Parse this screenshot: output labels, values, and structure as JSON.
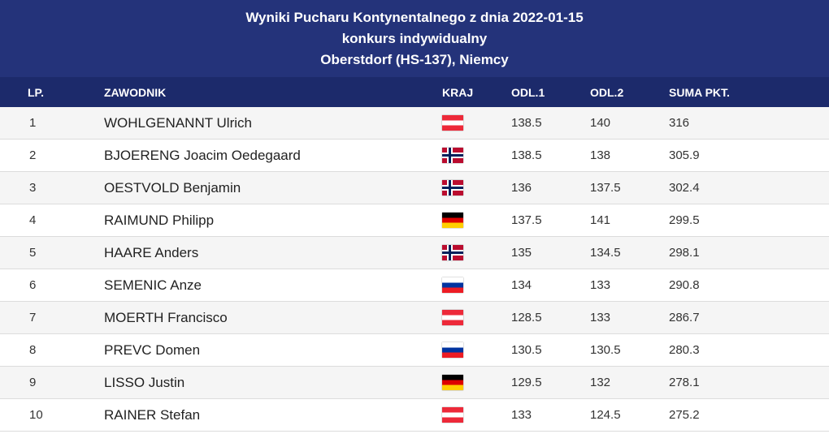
{
  "header": {
    "line1": "Wyniki Pucharu Kontynentalnego z dnia 2022-01-15",
    "line2": "konkurs indywidualny",
    "line3": "Oberstdorf (HS-137), Niemcy"
  },
  "columns": {
    "lp": "LP.",
    "name": "ZAWODNIK",
    "country": "KRAJ",
    "jump1": "ODL.1",
    "jump2": "ODL.2",
    "total": "SUMA PKT."
  },
  "rows": [
    {
      "lp": "1",
      "name": "WOHLGENANNT Ulrich",
      "flag": "austria-flag",
      "jump1": "138.5",
      "jump2": "140",
      "total": "316"
    },
    {
      "lp": "2",
      "name": "BJOERENG Joacim Oedegaard",
      "flag": "norway-flag",
      "jump1": "138.5",
      "jump2": "138",
      "total": "305.9"
    },
    {
      "lp": "3",
      "name": "OESTVOLD Benjamin",
      "flag": "norway-flag",
      "jump1": "136",
      "jump2": "137.5",
      "total": "302.4"
    },
    {
      "lp": "4",
      "name": "RAIMUND Philipp",
      "flag": "germany-flag",
      "jump1": "137.5",
      "jump2": "141",
      "total": "299.5"
    },
    {
      "lp": "5",
      "name": "HAARE Anders",
      "flag": "norway-flag",
      "jump1": "135",
      "jump2": "134.5",
      "total": "298.1"
    },
    {
      "lp": "6",
      "name": "SEMENIC Anze",
      "flag": "slovenia-flag",
      "jump1": "134",
      "jump2": "133",
      "total": "290.8"
    },
    {
      "lp": "7",
      "name": "MOERTH Francisco",
      "flag": "austria-flag",
      "jump1": "128.5",
      "jump2": "133",
      "total": "286.7"
    },
    {
      "lp": "8",
      "name": "PREVC Domen",
      "flag": "slovenia-flag",
      "jump1": "130.5",
      "jump2": "130.5",
      "total": "280.3"
    },
    {
      "lp": "9",
      "name": "LISSO Justin",
      "flag": "germany-flag",
      "jump1": "129.5",
      "jump2": "132",
      "total": "278.1"
    },
    {
      "lp": "10",
      "name": "RAINER Stefan",
      "flag": "austria-flag",
      "jump1": "133",
      "jump2": "124.5",
      "total": "275.2"
    }
  ],
  "colors": {
    "header_bg": "#24337a",
    "column_header_bg": "#1c2a6b",
    "row_alt_bg": "#f5f5f5"
  }
}
